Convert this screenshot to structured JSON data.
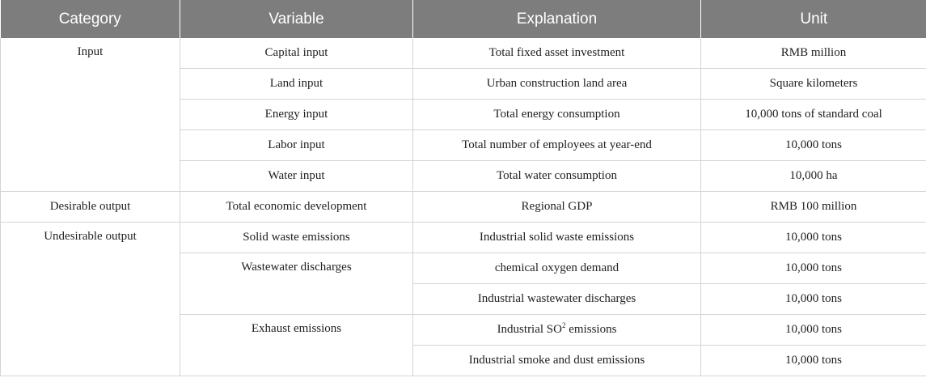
{
  "headers": [
    "Category",
    "Variable",
    "Explanation",
    "Unit"
  ],
  "rows": {
    "input": {
      "category": "Input",
      "capital": {
        "variable": "Capital input",
        "explanation": "Total fixed asset investment",
        "unit": "RMB million"
      },
      "land": {
        "variable": "Land input",
        "explanation": "Urban construction land area",
        "unit": "Square kilometers"
      },
      "energy": {
        "variable": "Energy input",
        "explanation": "Total energy consumption",
        "unit": "10,000 tons of standard coal"
      },
      "labor": {
        "variable": "Labor input",
        "explanation": "Total number of employees at year-end",
        "unit": "10,000 tons"
      },
      "water": {
        "variable": "Water input",
        "explanation": "Total water consumption",
        "unit": "10,000 ha"
      }
    },
    "desirable": {
      "category": "Desirable output",
      "variable": "Total economic development",
      "explanation": "Regional GDP",
      "unit": "RMB 100 million"
    },
    "undesirable": {
      "category": "Undesirable output",
      "solid": {
        "variable": "Solid waste emissions",
        "explanation": "Industrial solid waste emissions",
        "unit": "10,000 tons"
      },
      "wastewater": {
        "variable": "Wastewater discharges",
        "cod": {
          "explanation": "chemical oxygen demand",
          "unit": "10,000 tons"
        },
        "industrial": {
          "explanation": "Industrial wastewater discharges",
          "unit": "10,000 tons"
        }
      },
      "exhaust": {
        "variable": "Exhaust emissions",
        "so2": {
          "explanation_pre": "Industrial SO",
          "explanation_sup": "2",
          "explanation_post": " emissions",
          "unit": "10,000 tons"
        },
        "smoke": {
          "explanation": "Industrial smoke and dust emissions",
          "unit": "10,000 tons"
        }
      }
    }
  }
}
